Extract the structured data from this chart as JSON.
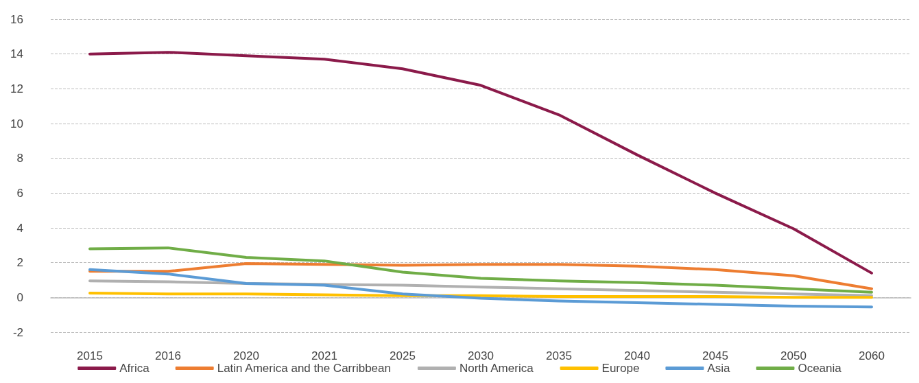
{
  "chart_data": {
    "type": "line",
    "categories": [
      "2015",
      "2016",
      "2020",
      "2021",
      "2025",
      "2030",
      "2035",
      "2040",
      "2045",
      "2050",
      "2060"
    ],
    "ylim": [
      -2,
      16
    ],
    "yticks": [
      -2,
      0,
      2,
      4,
      6,
      8,
      10,
      12,
      14,
      16
    ],
    "grid": "y",
    "legend": "bottom",
    "marker": "none",
    "line_style": "solid",
    "series": [
      {
        "name": "Africa",
        "color": "#8b1a4a",
        "values": [
          14.0,
          14.1,
          13.9,
          13.7,
          13.15,
          12.2,
          10.5,
          8.2,
          6.0,
          3.95,
          1.4
        ]
      },
      {
        "name": "Latin America and the Carribbean",
        "color": "#ed7d31",
        "values": [
          1.5,
          1.5,
          1.95,
          1.9,
          1.85,
          1.9,
          1.9,
          1.8,
          1.6,
          1.25,
          0.5
        ]
      },
      {
        "name": "North America",
        "color": "#b0b0b0",
        "values": [
          0.95,
          0.9,
          0.8,
          0.75,
          0.7,
          0.6,
          0.5,
          0.4,
          0.3,
          0.2,
          0.1
        ]
      },
      {
        "name": "Europe",
        "color": "#ffc000",
        "values": [
          0.25,
          0.2,
          0.2,
          0.15,
          0.1,
          0.1,
          0.05,
          0.05,
          0.05,
          0.0,
          0.0
        ]
      },
      {
        "name": "Asia",
        "color": "#5b9bd5",
        "values": [
          1.6,
          1.35,
          0.8,
          0.7,
          0.2,
          -0.05,
          -0.2,
          -0.3,
          -0.4,
          -0.5,
          -0.55
        ]
      },
      {
        "name": "Oceania",
        "color": "#70ad47",
        "values": [
          2.8,
          2.85,
          2.3,
          2.1,
          1.45,
          1.1,
          0.95,
          0.85,
          0.7,
          0.5,
          0.3
        ]
      }
    ]
  }
}
